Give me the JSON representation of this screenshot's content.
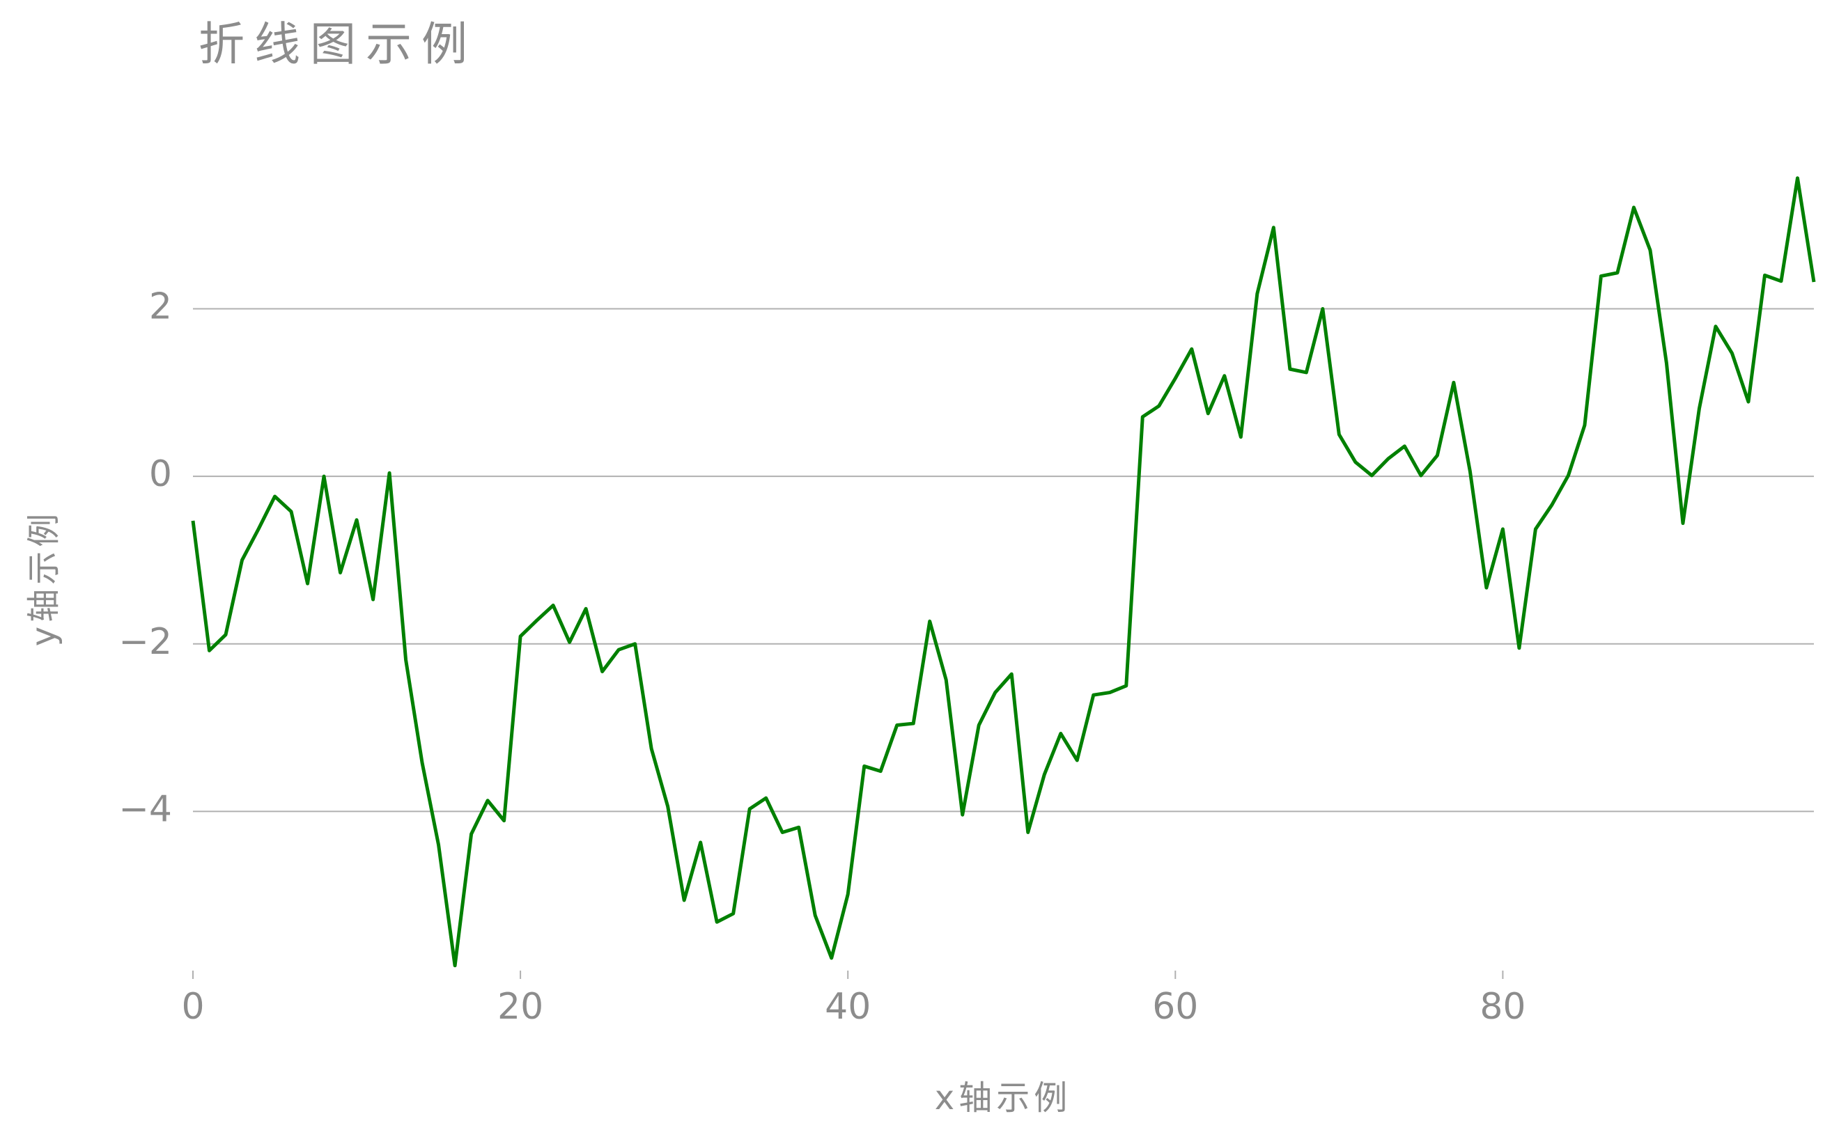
{
  "chart_data": {
    "type": "line",
    "title": "折线图示例",
    "x_label": "x轴示例",
    "y_label": "y轴示例",
    "x": [
      0,
      1,
      2,
      3,
      4,
      5,
      6,
      7,
      8,
      9,
      10,
      11,
      12,
      13,
      14,
      15,
      16,
      17,
      18,
      19,
      20,
      21,
      22,
      23,
      24,
      25,
      26,
      27,
      28,
      29,
      30,
      31,
      32,
      33,
      34,
      35,
      36,
      37,
      38,
      39,
      40,
      41,
      42,
      43,
      44,
      45,
      46,
      47,
      48,
      49,
      50,
      51,
      52,
      53,
      54,
      55,
      56,
      57,
      58,
      59,
      60,
      61,
      62,
      63,
      64,
      65,
      66,
      67,
      68,
      69,
      70,
      71,
      72,
      73,
      74,
      75,
      76,
      77,
      78,
      79,
      80,
      81,
      82,
      83,
      84,
      85,
      86,
      87,
      88,
      89,
      90,
      91,
      92,
      93,
      94,
      95,
      96,
      97,
      98,
      99
    ],
    "series": [
      {
        "color": "#008000",
        "values": [
          -0.53,
          -2.08,
          -1.89,
          -1.0,
          -0.63,
          -0.24,
          -0.42,
          -1.28,
          0.0,
          -1.15,
          -0.52,
          -1.47,
          0.04,
          -2.19,
          -3.42,
          -4.4,
          -5.84,
          -4.27,
          -3.87,
          -4.11,
          -1.91,
          -1.72,
          -1.54,
          -1.98,
          -1.58,
          -2.33,
          -2.07,
          -2.0,
          -3.25,
          -3.94,
          -5.06,
          -4.37,
          -5.32,
          -5.22,
          -3.97,
          -3.84,
          -4.25,
          -4.19,
          -5.24,
          -5.75,
          -4.99,
          -3.46,
          -3.52,
          -2.97,
          -2.95,
          -1.73,
          -2.43,
          -4.04,
          -2.97,
          -2.58,
          -2.36,
          -4.25,
          -3.56,
          -3.07,
          -3.39,
          -2.61,
          -2.58,
          -2.5,
          0.71,
          0.84,
          1.17,
          1.52,
          0.75,
          1.2,
          0.47,
          2.18,
          2.97,
          1.28,
          1.24,
          2.0,
          0.5,
          0.17,
          0.01,
          0.21,
          0.36,
          0.01,
          0.25,
          1.12,
          0.06,
          -1.33,
          -0.63,
          -2.05,
          -0.63,
          -0.34,
          0.01,
          0.61,
          2.39,
          2.43,
          3.21,
          2.7,
          1.35,
          -0.56,
          0.81,
          1.79,
          1.47,
          0.89,
          2.4,
          2.33,
          3.56,
          2.32
        ]
      }
    ],
    "xlim": [
      0,
      99
    ],
    "ylim": [
      -5.9,
      3.6
    ],
    "xticks": [
      0,
      20,
      40,
      60,
      80
    ],
    "yticks": [
      {
        "value": -4,
        "label": "−4"
      },
      {
        "value": -2,
        "label": "−2"
      },
      0,
      2
    ],
    "grid": true
  }
}
